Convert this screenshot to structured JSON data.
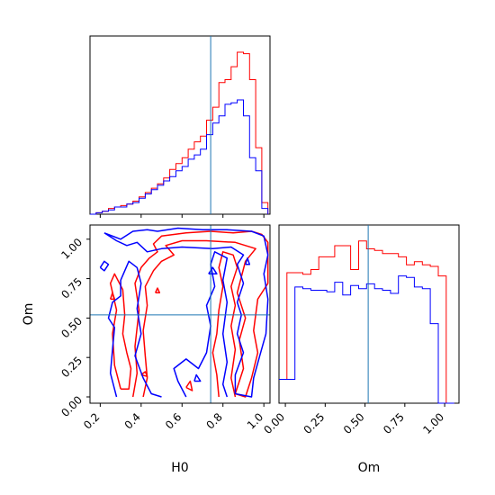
{
  "chart_data": [
    {
      "type": "histogram",
      "panel": "H0 marginal",
      "xlim": [
        0.15,
        1.03
      ],
      "truth": 0.74,
      "bin_edges": [
        0.15,
        0.18,
        0.21,
        0.24,
        0.27,
        0.3,
        0.33,
        0.36,
        0.39,
        0.42,
        0.45,
        0.48,
        0.51,
        0.54,
        0.57,
        0.6,
        0.63,
        0.66,
        0.69,
        0.72,
        0.75,
        0.78,
        0.81,
        0.84,
        0.87,
        0.9,
        0.93,
        0.96,
        0.99,
        1.02
      ],
      "series": [
        {
          "color": "#ff0000",
          "values": [
            0,
            1,
            2,
            4,
            5,
            6,
            7,
            9,
            12,
            15,
            18,
            21,
            25,
            31,
            35,
            39,
            45,
            50,
            54,
            65,
            74,
            91,
            93,
            102,
            112,
            111,
            93,
            46,
            8
          ]
        },
        {
          "color": "#0000ff",
          "values": [
            0,
            1,
            2,
            3,
            5,
            5,
            7,
            8,
            11,
            14,
            17,
            20,
            23,
            26,
            30,
            33,
            38,
            41,
            45,
            55,
            63,
            68,
            76,
            77,
            79,
            68,
            39,
            30,
            4
          ]
        }
      ]
    },
    {
      "type": "contour",
      "panel": "Om vs H0",
      "xlabel": "H0",
      "ylabel": "Om",
      "xlim": [
        0.15,
        1.03
      ],
      "ylim": [
        -0.04,
        1.09
      ],
      "xticks": [
        "0.2",
        "0.4",
        "0.6",
        "0.8",
        "1.0"
      ],
      "yticks": [
        "0.00",
        "0.25",
        "0.50",
        "0.75",
        "1.00"
      ],
      "truth": {
        "x": 0.74,
        "y": 0.52
      },
      "series": [
        {
          "color": "#ff0000",
          "contours": [
            [
              [
                0.3,
                0.05
              ],
              [
                0.27,
                0.2
              ],
              [
                0.26,
                0.4
              ],
              [
                0.28,
                0.55
              ],
              [
                0.25,
                0.72
              ],
              [
                0.27,
                0.78
              ],
              [
                0.31,
                0.68
              ],
              [
                0.32,
                0.52
              ],
              [
                0.31,
                0.4
              ],
              [
                0.33,
                0.28
              ],
              [
                0.35,
                0.18
              ],
              [
                0.34,
                0.05
              ],
              [
                0.3,
                0.05
              ]
            ],
            [
              [
                0.36,
                0.0
              ],
              [
                0.38,
                0.15
              ],
              [
                0.37,
                0.32
              ],
              [
                0.39,
                0.55
              ],
              [
                0.37,
                0.72
              ],
              [
                0.4,
                0.82
              ],
              [
                0.44,
                0.88
              ],
              [
                0.48,
                0.92
              ],
              [
                0.46,
                0.97
              ],
              [
                0.5,
                1.02
              ],
              [
                0.62,
                1.04
              ],
              [
                0.74,
                1.05
              ],
              [
                0.85,
                1.04
              ],
              [
                0.94,
                1.05
              ],
              [
                0.99,
                1.03
              ],
              [
                1.02,
                0.98
              ],
              [
                1.02,
                0.72
              ],
              [
                0.97,
                0.62
              ],
              [
                0.95,
                0.42
              ],
              [
                0.97,
                0.28
              ],
              [
                0.94,
                0.12
              ],
              [
                0.91,
                0.0
              ],
              [
                0.86,
                0.02
              ],
              [
                0.9,
                0.18
              ],
              [
                0.88,
                0.36
              ],
              [
                0.91,
                0.5
              ],
              [
                0.87,
                0.66
              ],
              [
                0.91,
                0.86
              ],
              [
                0.96,
                0.94
              ],
              [
                0.86,
                0.98
              ],
              [
                0.72,
                0.99
              ],
              [
                0.6,
                0.99
              ],
              [
                0.52,
                0.96
              ],
              [
                0.56,
                0.9
              ],
              [
                0.5,
                0.86
              ],
              [
                0.46,
                0.8
              ],
              [
                0.42,
                0.7
              ],
              [
                0.43,
                0.58
              ],
              [
                0.41,
                0.42
              ],
              [
                0.42,
                0.26
              ],
              [
                0.43,
                0.12
              ],
              [
                0.41,
                0.0
              ]
            ],
            [
              [
                0.86,
                0.0
              ],
              [
                0.84,
                0.12
              ],
              [
                0.86,
                0.3
              ],
              [
                0.84,
                0.45
              ],
              [
                0.86,
                0.58
              ],
              [
                0.84,
                0.7
              ],
              [
                0.87,
                0.82
              ],
              [
                0.85,
                0.9
              ],
              [
                0.8,
                0.92
              ],
              [
                0.78,
                0.82
              ],
              [
                0.8,
                0.7
              ],
              [
                0.78,
                0.55
              ],
              [
                0.77,
                0.4
              ],
              [
                0.75,
                0.28
              ],
              [
                0.77,
                0.14
              ],
              [
                0.78,
                0.0
              ]
            ],
            [
              [
                0.62,
                0.06
              ],
              [
                0.64,
                0.1
              ],
              [
                0.65,
                0.04
              ],
              [
                0.62,
                0.06
              ]
            ],
            [
              [
                0.47,
                0.66
              ],
              [
                0.48,
                0.69
              ],
              [
                0.49,
                0.66
              ],
              [
                0.47,
                0.66
              ]
            ],
            [
              [
                0.4,
                0.14
              ],
              [
                0.42,
                0.16
              ],
              [
                0.43,
                0.13
              ],
              [
                0.4,
                0.14
              ]
            ],
            [
              [
                0.25,
                0.62
              ],
              [
                0.26,
                0.66
              ],
              [
                0.27,
                0.62
              ],
              [
                0.25,
                0.62
              ]
            ]
          ]
        },
        {
          "color": "#0000ff",
          "contours": [
            [
              [
                0.22,
                1.04
              ],
              [
                0.3,
                1.0
              ],
              [
                0.36,
                1.05
              ],
              [
                0.43,
                1.06
              ],
              [
                0.48,
                1.05
              ],
              [
                0.58,
                1.07
              ],
              [
                0.7,
                1.06
              ],
              [
                0.82,
                1.06
              ],
              [
                0.94,
                1.05
              ],
              [
                1.0,
                1.02
              ],
              [
                1.02,
                0.9
              ],
              [
                1.0,
                0.78
              ],
              [
                1.02,
                0.62
              ],
              [
                1.01,
                0.4
              ],
              [
                0.98,
                0.26
              ],
              [
                0.95,
                0.12
              ],
              [
                0.94,
                0.0
              ],
              [
                0.86,
                0.02
              ],
              [
                0.86,
                0.14
              ],
              [
                0.9,
                0.28
              ],
              [
                0.87,
                0.4
              ],
              [
                0.89,
                0.52
              ],
              [
                0.87,
                0.6
              ],
              [
                0.9,
                0.72
              ],
              [
                0.87,
                0.84
              ],
              [
                0.9,
                0.9
              ],
              [
                0.84,
                0.95
              ],
              [
                0.75,
                0.94
              ],
              [
                0.6,
                0.95
              ],
              [
                0.5,
                0.94
              ],
              [
                0.43,
                0.92
              ],
              [
                0.38,
                0.98
              ],
              [
                0.33,
                0.96
              ],
              [
                0.28,
                0.99
              ],
              [
                0.22,
                1.04
              ]
            ],
            [
              [
                0.28,
                0.0
              ],
              [
                0.25,
                0.15
              ],
              [
                0.26,
                0.3
              ],
              [
                0.27,
                0.44
              ],
              [
                0.24,
                0.5
              ],
              [
                0.26,
                0.6
              ],
              [
                0.3,
                0.64
              ],
              [
                0.3,
                0.74
              ],
              [
                0.34,
                0.86
              ],
              [
                0.38,
                0.82
              ],
              [
                0.4,
                0.72
              ],
              [
                0.38,
                0.56
              ],
              [
                0.4,
                0.4
              ],
              [
                0.37,
                0.26
              ],
              [
                0.41,
                0.12
              ],
              [
                0.45,
                0.02
              ],
              [
                0.5,
                0.0
              ]
            ],
            [
              [
                0.62,
                0.0
              ],
              [
                0.58,
                0.1
              ],
              [
                0.56,
                0.18
              ],
              [
                0.62,
                0.24
              ],
              [
                0.68,
                0.18
              ],
              [
                0.72,
                0.28
              ],
              [
                0.74,
                0.45
              ],
              [
                0.72,
                0.58
              ],
              [
                0.76,
                0.7
              ],
              [
                0.74,
                0.84
              ],
              [
                0.76,
                0.92
              ],
              [
                0.82,
                0.88
              ],
              [
                0.8,
                0.74
              ],
              [
                0.82,
                0.6
              ],
              [
                0.8,
                0.4
              ],
              [
                0.82,
                0.22
              ],
              [
                0.8,
                0.08
              ],
              [
                0.82,
                0.0
              ]
            ],
            [
              [
                0.2,
                0.82
              ],
              [
                0.22,
                0.86
              ],
              [
                0.24,
                0.84
              ],
              [
                0.22,
                0.8
              ],
              [
                0.2,
                0.82
              ]
            ],
            [
              [
                0.73,
                0.78
              ],
              [
                0.75,
                0.82
              ],
              [
                0.77,
                0.78
              ],
              [
                0.73,
                0.78
              ]
            ],
            [
              [
                0.91,
                0.84
              ],
              [
                0.92,
                0.88
              ],
              [
                0.93,
                0.84
              ],
              [
                0.91,
                0.84
              ]
            ],
            [
              [
                0.66,
                0.1
              ],
              [
                0.67,
                0.14
              ],
              [
                0.69,
                0.1
              ],
              [
                0.66,
                0.1
              ]
            ]
          ]
        }
      ]
    },
    {
      "type": "histogram",
      "panel": "Om marginal",
      "xlabel": "Om",
      "xlim": [
        -0.04,
        1.09
      ],
      "xticks": [
        "0.00",
        "0.25",
        "0.50",
        "0.75",
        "1.00"
      ],
      "truth": 0.52,
      "bin_edges": [
        -0.04,
        0.01,
        0.06,
        0.11,
        0.16,
        0.21,
        0.26,
        0.31,
        0.36,
        0.41,
        0.46,
        0.51,
        0.56,
        0.61,
        0.66,
        0.71,
        0.76,
        0.81,
        0.86,
        0.91,
        0.96,
        1.01,
        1.06
      ],
      "series": [
        {
          "color": "#ff0000",
          "values": [
            15,
            82,
            82,
            81,
            84,
            92,
            92,
            99,
            99,
            84,
            102,
            97,
            96,
            94,
            94,
            92,
            87,
            89,
            87,
            86,
            80,
            0
          ]
        },
        {
          "color": "#0000ff",
          "values": [
            15,
            15,
            73,
            72,
            71,
            71,
            70,
            76,
            68,
            74,
            72,
            75,
            72,
            71,
            69,
            80,
            79,
            73,
            72,
            50,
            0,
            0
          ]
        }
      ]
    }
  ]
}
